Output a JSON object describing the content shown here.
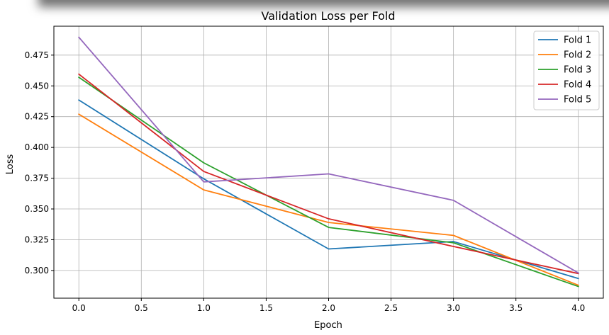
{
  "chart_data": {
    "type": "line",
    "title": "Validation Loss per Fold",
    "xlabel": "Epoch",
    "ylabel": "Loss",
    "xlim": [
      -0.2,
      4.2
    ],
    "ylim": [
      0.2775,
      0.4985
    ],
    "xticks": [
      0.0,
      0.5,
      1.0,
      1.5,
      2.0,
      2.5,
      3.0,
      3.5,
      4.0
    ],
    "xtick_labels": [
      "0.0",
      "0.5",
      "1.0",
      "1.5",
      "2.0",
      "2.5",
      "3.0",
      "3.5",
      "4.0"
    ],
    "yticks": [
      0.3,
      0.325,
      0.35,
      0.375,
      0.4,
      0.425,
      0.45,
      0.475
    ],
    "ytick_labels": [
      "0.300",
      "0.325",
      "0.350",
      "0.375",
      "0.400",
      "0.425",
      "0.450",
      "0.475"
    ],
    "grid": true,
    "legend_position": "top-right",
    "x": [
      0,
      1,
      2,
      3,
      4
    ],
    "series": [
      {
        "name": "Fold 1",
        "color": "#1f77b4",
        "values": [
          0.4385,
          0.3745,
          0.3175,
          0.3235,
          0.2935
        ]
      },
      {
        "name": "Fold 2",
        "color": "#ff7f0e",
        "values": [
          0.427,
          0.3655,
          0.339,
          0.3285,
          0.288
        ]
      },
      {
        "name": "Fold 3",
        "color": "#2ca02c",
        "values": [
          0.457,
          0.3875,
          0.335,
          0.3225,
          0.287
        ]
      },
      {
        "name": "Fold 4",
        "color": "#d62728",
        "values": [
          0.4595,
          0.3805,
          0.342,
          0.3195,
          0.2975
        ]
      },
      {
        "name": "Fold 5",
        "color": "#9467bd",
        "values": [
          0.4895,
          0.372,
          0.3785,
          0.357,
          0.298
        ]
      }
    ]
  }
}
